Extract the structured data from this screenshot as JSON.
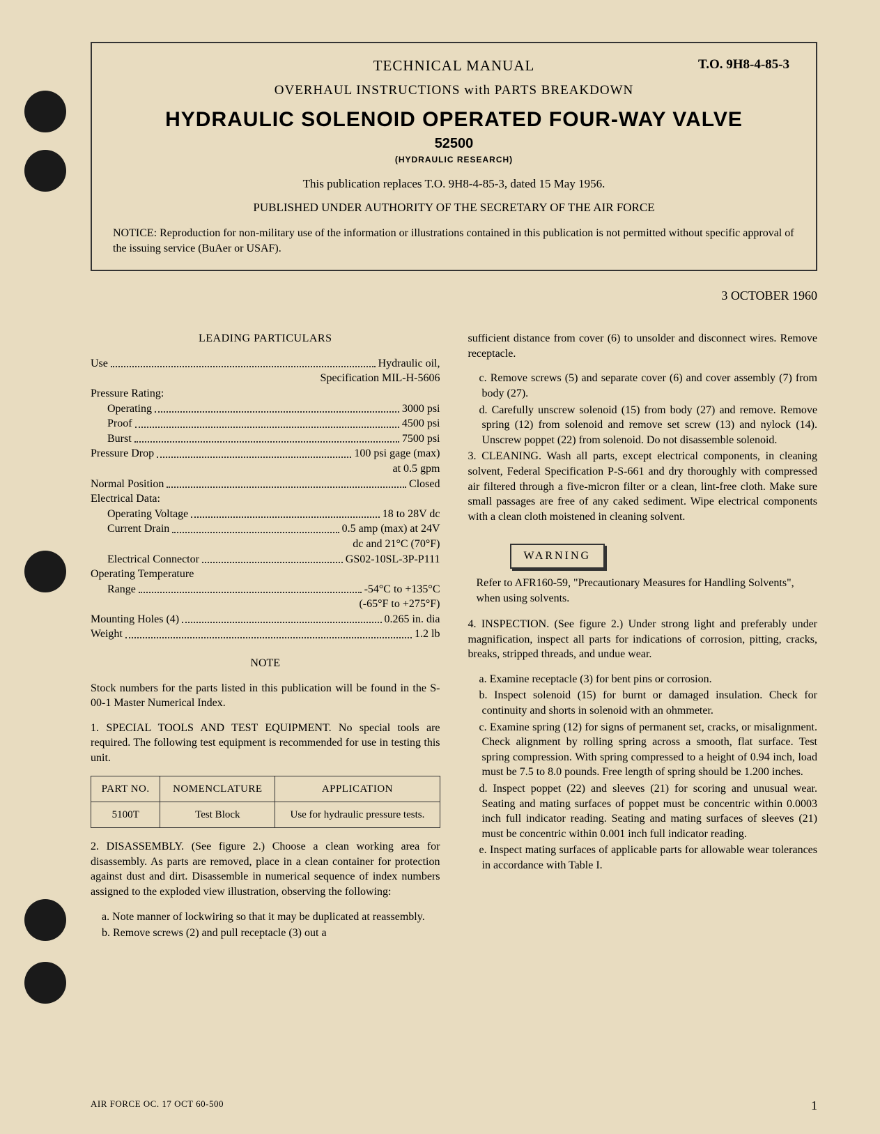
{
  "punch_holes": [
    130,
    215,
    790,
    1290,
    1380
  ],
  "header": {
    "technical_manual": "TECHNICAL MANUAL",
    "to_number": "T.O. 9H8-4-85-3",
    "subhead": "OVERHAUL INSTRUCTIONS with PARTS BREAKDOWN",
    "title": "HYDRAULIC SOLENOID OPERATED FOUR-WAY VALVE",
    "part_number": "52500",
    "manufacturer": "(HYDRAULIC RESEARCH)",
    "replaces": "This publication replaces T.O. 9H8-4-85-3, dated 15 May 1956.",
    "authority": "PUBLISHED UNDER AUTHORITY OF THE SECRETARY OF THE AIR FORCE",
    "notice": "NOTICE: Reproduction for non-military use of the information or illustrations contained in this publication is not permitted without specific approval of the issuing service (BuAer or USAF)."
  },
  "date": "3 OCTOBER 1960",
  "leading_particulars": {
    "heading": "LEADING PARTICULARS",
    "rows": [
      {
        "label": "Use",
        "value": "Hydraulic oil,",
        "cont": "Specification MIL-H-5606",
        "indent": 0
      },
      {
        "label": "Pressure Rating:",
        "value": "",
        "indent": 0,
        "nodots": true
      },
      {
        "label": "Operating",
        "value": "3000 psi",
        "indent": 1
      },
      {
        "label": "Proof",
        "value": "4500 psi",
        "indent": 1
      },
      {
        "label": "Burst",
        "value": "7500 psi",
        "indent": 1
      },
      {
        "label": "Pressure Drop",
        "value": "100 psi gage (max)",
        "cont": "at 0.5 gpm",
        "indent": 0
      },
      {
        "label": "Normal Position",
        "value": "Closed",
        "indent": 0
      },
      {
        "label": "Electrical Data:",
        "value": "",
        "indent": 0,
        "nodots": true
      },
      {
        "label": "Operating Voltage",
        "value": "18 to 28V dc",
        "indent": 1
      },
      {
        "label": "Current Drain",
        "value": "0.5 amp (max) at 24V",
        "cont": "dc and 21°C (70°F)",
        "indent": 1
      },
      {
        "label": "Electrical Connector",
        "value": "GS02-10SL-3P-P111",
        "indent": 1
      },
      {
        "label": "Operating Temperature",
        "value": "",
        "indent": 0,
        "nodots": true
      },
      {
        "label": "Range",
        "value": "-54°C to +135°C",
        "cont": "(-65°F to +275°F)",
        "indent": 1
      },
      {
        "label": "Mounting Holes (4)",
        "value": "0.265 in. dia",
        "indent": 0
      },
      {
        "label": "Weight",
        "value": "1.2 lb",
        "indent": 0
      }
    ]
  },
  "note": {
    "heading": "NOTE",
    "text": "Stock numbers for the parts listed in this publication will be found in the S-00-1 Master Numerical Index."
  },
  "section1": {
    "text": "1. SPECIAL TOOLS AND TEST EQUIPMENT. No special tools are required. The following test equipment is recommended for use in testing this unit."
  },
  "tool_table": {
    "headers": [
      "PART NO.",
      "NOMENCLATURE",
      "APPLICATION"
    ],
    "rows": [
      [
        "5100T",
        "Test Block",
        "Use for hydraulic pressure tests."
      ]
    ]
  },
  "section2": {
    "intro": "2. DISASSEMBLY. (See figure 2.) Choose a clean working area for disassembly. As parts are removed, place in a clean container for protection against dust and dirt. Disassemble in numerical sequence of index numbers assigned to the exploded view illustration, observing the following:",
    "a": "a. Note manner of lockwiring so that it may be duplicated at reassembly.",
    "b": "b. Remove screws (2) and pull receptacle (3) out a",
    "b_cont": "sufficient distance from cover (6) to unsolder and disconnect wires. Remove receptacle.",
    "c": "c. Remove screws (5) and separate cover (6) and cover assembly (7) from body (27).",
    "d": "d. Carefully unscrew solenoid (15) from body (27) and remove. Remove spring (12) from solenoid and remove set screw (13) and nylock (14). Unscrew poppet (22) from solenoid. Do not disassemble solenoid."
  },
  "section3": {
    "text": "3. CLEANING. Wash all parts, except electrical components, in cleaning solvent, Federal Specification P-S-661 and dry thoroughly with compressed air filtered through a five-micron filter or a clean, lint-free cloth. Make sure small passages are free of any caked sediment. Wipe electrical components with a clean cloth moistened in cleaning solvent."
  },
  "warning": {
    "label": "WARNING",
    "text": "Refer to AFR160-59, \"Precautionary Measures for Handling Solvents\", when using solvents."
  },
  "section4": {
    "intro": "4. INSPECTION. (See figure 2.) Under strong light and preferably under magnification, inspect all parts for indications of corrosion, pitting, cracks, breaks, stripped threads, and undue wear.",
    "a": "a. Examine receptacle (3) for bent pins or corrosion.",
    "b": "b. Inspect solenoid (15) for burnt or damaged insulation. Check for continuity and shorts in solenoid with an ohmmeter.",
    "c": "c. Examine spring (12) for signs of permanent set, cracks, or misalignment. Check alignment by rolling spring across a smooth, flat surface. Test spring compression. With spring compressed to a height of 0.94 inch, load must be 7.5 to 8.0 pounds. Free length of spring should be 1.200 inches.",
    "d": "d. Inspect poppet (22) and sleeves (21) for scoring and unusual wear. Seating and mating surfaces of poppet must be concentric within 0.0003 inch full indicator reading. Seating and mating surfaces of sleeves (21) must be concentric within 0.001 inch full indicator reading.",
    "e": "e. Inspect mating surfaces of applicable parts for allowable wear tolerances in accordance with Table I."
  },
  "footer": {
    "print_info": "AIR FORCE OC. 17 OCT 60-500",
    "page": "1"
  },
  "colors": {
    "paper": "#e8dcc0",
    "ink": "#2a2a2a",
    "hole": "#1a1a1a"
  }
}
